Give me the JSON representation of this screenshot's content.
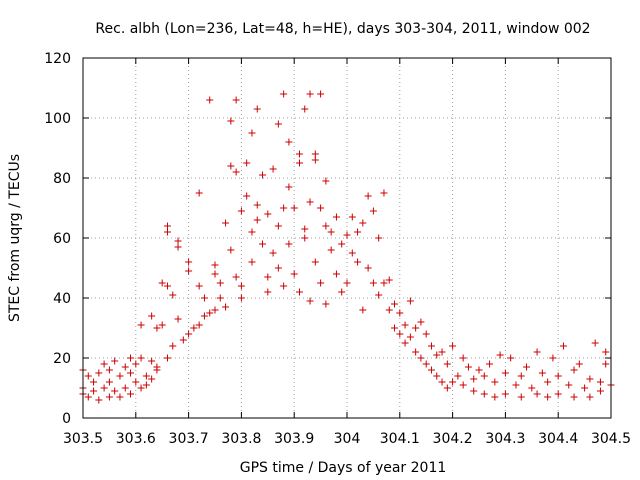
{
  "chart_data": {
    "type": "scatter",
    "title": "Rec. albh (Lon=236, Lat=48, h=HE), days 303-304, 2011, window 002",
    "xlabel": "GPS time / Days of year 2011",
    "ylabel": "STEC from uqrg / TECUs",
    "xlim": [
      303.5,
      304.5
    ],
    "ylim": [
      0,
      120
    ],
    "grid": true,
    "marker": "+",
    "color": "#cc0000",
    "x_ticks": [
      {
        "value": 303.5,
        "label": "303.5"
      },
      {
        "value": 303.6,
        "label": "303.6"
      },
      {
        "value": 303.7,
        "label": "303.7"
      },
      {
        "value": 303.8,
        "label": "303.8"
      },
      {
        "value": 303.9,
        "label": "303.9"
      },
      {
        "value": 304.0,
        "label": "304"
      },
      {
        "value": 304.1,
        "label": "304.1"
      },
      {
        "value": 304.2,
        "label": "304.2"
      },
      {
        "value": 304.3,
        "label": "304.3"
      },
      {
        "value": 304.4,
        "label": "304.4"
      },
      {
        "value": 304.5,
        "label": "304.5"
      }
    ],
    "y_ticks": [
      {
        "value": 0,
        "label": "0"
      },
      {
        "value": 20,
        "label": "20"
      },
      {
        "value": 40,
        "label": "40"
      },
      {
        "value": 60,
        "label": "60"
      },
      {
        "value": 80,
        "label": "80"
      },
      {
        "value": 100,
        "label": "100"
      },
      {
        "value": 120,
        "label": "120"
      }
    ],
    "points": [
      [
        303.5,
        16
      ],
      [
        303.51,
        14
      ],
      [
        303.52,
        12
      ],
      [
        303.53,
        15
      ],
      [
        303.54,
        18
      ],
      [
        303.55,
        16
      ],
      [
        303.56,
        19
      ],
      [
        303.58,
        17
      ],
      [
        303.59,
        20
      ],
      [
        303.6,
        18
      ],
      [
        303.5,
        8
      ],
      [
        303.51,
        7
      ],
      [
        303.53,
        6
      ],
      [
        303.55,
        7
      ],
      [
        303.57,
        7
      ],
      [
        303.59,
        8
      ],
      [
        303.61,
        10
      ],
      [
        303.62,
        11
      ],
      [
        303.63,
        13
      ],
      [
        303.64,
        17
      ],
      [
        303.5,
        10
      ],
      [
        303.52,
        9
      ],
      [
        303.54,
        10
      ],
      [
        303.56,
        9
      ],
      [
        303.58,
        10
      ],
      [
        303.6,
        12
      ],
      [
        303.62,
        14
      ],
      [
        303.64,
        16
      ],
      [
        303.66,
        20
      ],
      [
        303.67,
        24
      ],
      [
        303.55,
        12
      ],
      [
        303.57,
        14
      ],
      [
        303.59,
        15
      ],
      [
        303.61,
        20
      ],
      [
        303.63,
        19
      ],
      [
        303.64,
        30
      ],
      [
        303.65,
        31
      ],
      [
        303.61,
        31
      ],
      [
        303.63,
        34
      ],
      [
        303.65,
        45
      ],
      [
        303.66,
        44
      ],
      [
        303.67,
        41
      ],
      [
        303.68,
        33
      ],
      [
        303.69,
        26
      ],
      [
        303.7,
        28
      ],
      [
        303.71,
        30
      ],
      [
        303.72,
        31
      ],
      [
        303.73,
        34
      ],
      [
        303.74,
        35
      ],
      [
        303.75,
        36
      ],
      [
        303.66,
        64
      ],
      [
        303.66,
        62
      ],
      [
        303.68,
        59
      ],
      [
        303.68,
        57
      ],
      [
        303.7,
        52
      ],
      [
        303.7,
        49
      ],
      [
        303.72,
        44
      ],
      [
        303.73,
        40
      ],
      [
        303.72,
        75
      ],
      [
        303.74,
        106
      ],
      [
        303.75,
        51
      ],
      [
        303.75,
        48
      ],
      [
        303.76,
        45
      ],
      [
        303.76,
        40
      ],
      [
        303.77,
        37
      ],
      [
        303.77,
        65
      ],
      [
        303.78,
        84
      ],
      [
        303.78,
        99
      ],
      [
        303.79,
        106
      ],
      [
        303.79,
        82
      ],
      [
        303.78,
        56
      ],
      [
        303.79,
        47
      ],
      [
        303.8,
        44
      ],
      [
        303.8,
        40
      ],
      [
        303.8,
        69
      ],
      [
        303.81,
        74
      ],
      [
        303.81,
        85
      ],
      [
        303.82,
        62
      ],
      [
        303.82,
        52
      ],
      [
        303.83,
        103
      ],
      [
        303.82,
        95
      ],
      [
        303.83,
        71
      ],
      [
        303.83,
        66
      ],
      [
        303.84,
        81
      ],
      [
        303.84,
        58
      ],
      [
        303.85,
        47
      ],
      [
        303.85,
        42
      ],
      [
        303.85,
        68
      ],
      [
        303.86,
        83
      ],
      [
        303.86,
        55
      ],
      [
        303.87,
        98
      ],
      [
        303.87,
        64
      ],
      [
        303.87,
        50
      ],
      [
        303.88,
        108
      ],
      [
        303.88,
        70
      ],
      [
        303.88,
        44
      ],
      [
        303.89,
        92
      ],
      [
        303.89,
        77
      ],
      [
        303.89,
        58
      ],
      [
        303.9,
        48
      ],
      [
        303.9,
        70
      ],
      [
        303.91,
        88
      ],
      [
        303.91,
        85
      ],
      [
        303.91,
        42
      ],
      [
        303.92,
        103
      ],
      [
        303.92,
        63
      ],
      [
        303.92,
        60
      ],
      [
        303.93,
        108
      ],
      [
        303.93,
        72
      ],
      [
        303.93,
        39
      ],
      [
        303.94,
        88
      ],
      [
        303.94,
        86
      ],
      [
        303.94,
        52
      ],
      [
        303.95,
        108
      ],
      [
        303.95,
        70
      ],
      [
        303.95,
        45
      ],
      [
        303.96,
        79
      ],
      [
        303.96,
        64
      ],
      [
        303.96,
        38
      ],
      [
        303.97,
        62
      ],
      [
        303.97,
        56
      ],
      [
        303.98,
        67
      ],
      [
        303.98,
        48
      ],
      [
        303.99,
        58
      ],
      [
        303.99,
        42
      ],
      [
        304.0,
        61
      ],
      [
        304.0,
        45
      ],
      [
        304.01,
        67
      ],
      [
        304.01,
        55
      ],
      [
        304.02,
        62
      ],
      [
        304.02,
        52
      ],
      [
        304.03,
        65
      ],
      [
        304.03,
        36
      ],
      [
        304.04,
        74
      ],
      [
        304.04,
        50
      ],
      [
        304.05,
        69
      ],
      [
        304.05,
        45
      ],
      [
        304.06,
        60
      ],
      [
        304.06,
        41
      ],
      [
        304.07,
        75
      ],
      [
        304.07,
        45
      ],
      [
        304.08,
        46
      ],
      [
        304.08,
        36
      ],
      [
        304.09,
        38
      ],
      [
        304.09,
        30
      ],
      [
        304.1,
        35
      ],
      [
        304.1,
        28
      ],
      [
        304.11,
        31
      ],
      [
        304.11,
        25
      ],
      [
        304.12,
        39
      ],
      [
        304.12,
        27
      ],
      [
        304.13,
        30
      ],
      [
        304.13,
        22
      ],
      [
        304.14,
        32
      ],
      [
        304.14,
        20
      ],
      [
        304.15,
        28
      ],
      [
        304.15,
        18
      ],
      [
        304.16,
        24
      ],
      [
        304.16,
        16
      ],
      [
        304.17,
        21
      ],
      [
        304.17,
        14
      ],
      [
        304.18,
        22
      ],
      [
        304.18,
        12
      ],
      [
        304.19,
        18
      ],
      [
        304.19,
        10
      ],
      [
        304.2,
        24
      ],
      [
        304.2,
        12
      ],
      [
        304.21,
        14
      ],
      [
        304.22,
        20
      ],
      [
        304.22,
        11
      ],
      [
        304.23,
        17
      ],
      [
        304.24,
        13
      ],
      [
        304.24,
        9
      ],
      [
        304.25,
        16
      ],
      [
        304.26,
        14
      ],
      [
        304.26,
        8
      ],
      [
        304.27,
        18
      ],
      [
        304.28,
        12
      ],
      [
        304.28,
        7
      ],
      [
        304.29,
        21
      ],
      [
        304.3,
        15
      ],
      [
        304.3,
        8
      ],
      [
        304.31,
        20
      ],
      [
        304.32,
        11
      ],
      [
        304.33,
        14
      ],
      [
        304.33,
        7
      ],
      [
        304.34,
        17
      ],
      [
        304.35,
        10
      ],
      [
        304.36,
        22
      ],
      [
        304.36,
        8
      ],
      [
        304.37,
        15
      ],
      [
        304.38,
        12
      ],
      [
        304.38,
        7
      ],
      [
        304.39,
        20
      ],
      [
        304.4,
        14
      ],
      [
        304.4,
        8
      ],
      [
        304.41,
        24
      ],
      [
        304.42,
        11
      ],
      [
        304.43,
        16
      ],
      [
        304.43,
        7
      ],
      [
        304.44,
        18
      ],
      [
        304.45,
        10
      ],
      [
        304.46,
        13
      ],
      [
        304.46,
        7
      ],
      [
        304.47,
        25
      ],
      [
        304.48,
        12
      ],
      [
        304.48,
        9
      ],
      [
        304.49,
        22
      ],
      [
        304.49,
        18
      ],
      [
        304.5,
        11
      ]
    ]
  }
}
